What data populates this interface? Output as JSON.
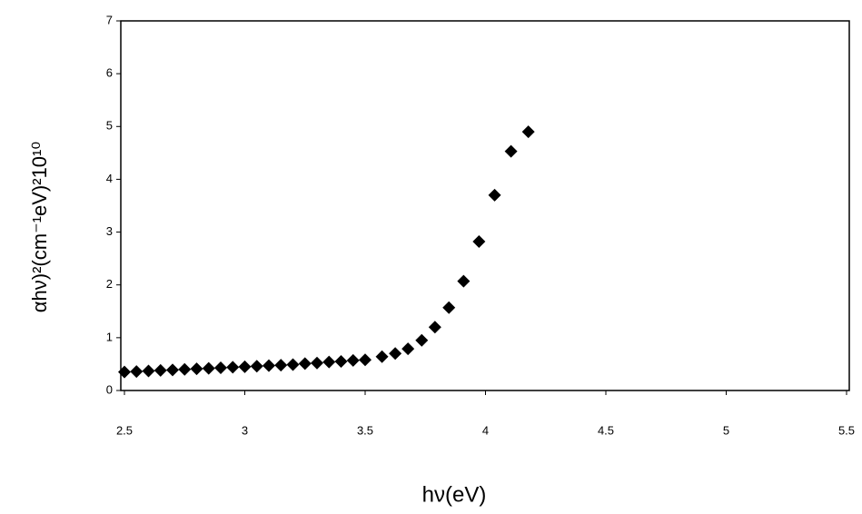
{
  "chart_data": {
    "type": "scatter",
    "xlabel": "hν(eV)",
    "ylabel": "αhν)²(cm⁻¹eV)²10¹⁰",
    "x": [
      2.5,
      2.55,
      2.6,
      2.65,
      2.7,
      2.75,
      2.8,
      2.85,
      2.9,
      2.95,
      3.0,
      3.05,
      3.1,
      3.15,
      3.2,
      3.25,
      3.3,
      3.35,
      3.4,
      3.45,
      3.5,
      3.57,
      3.625,
      3.678,
      3.735,
      3.79,
      3.848,
      3.909,
      3.973,
      4.038,
      4.106,
      4.178
    ],
    "values": [
      0.35,
      0.36,
      0.37,
      0.38,
      0.39,
      0.4,
      0.41,
      0.42,
      0.43,
      0.44,
      0.45,
      0.46,
      0.47,
      0.48,
      0.49,
      0.51,
      0.52,
      0.54,
      0.55,
      0.57,
      0.58,
      0.64,
      0.7,
      0.79,
      0.95,
      1.2,
      1.57,
      2.07,
      2.82,
      3.7,
      4.53,
      4.9
    ],
    "color": "#000000",
    "xlim": [
      2.5,
      5.5
    ],
    "xticks": [
      2.5,
      3,
      3.5,
      4,
      4.5,
      5,
      5.5
    ],
    "ylim": [
      0,
      7
    ],
    "yticks": [
      0,
      1,
      2,
      3,
      4,
      5,
      6,
      7
    ],
    "grid": false
  }
}
